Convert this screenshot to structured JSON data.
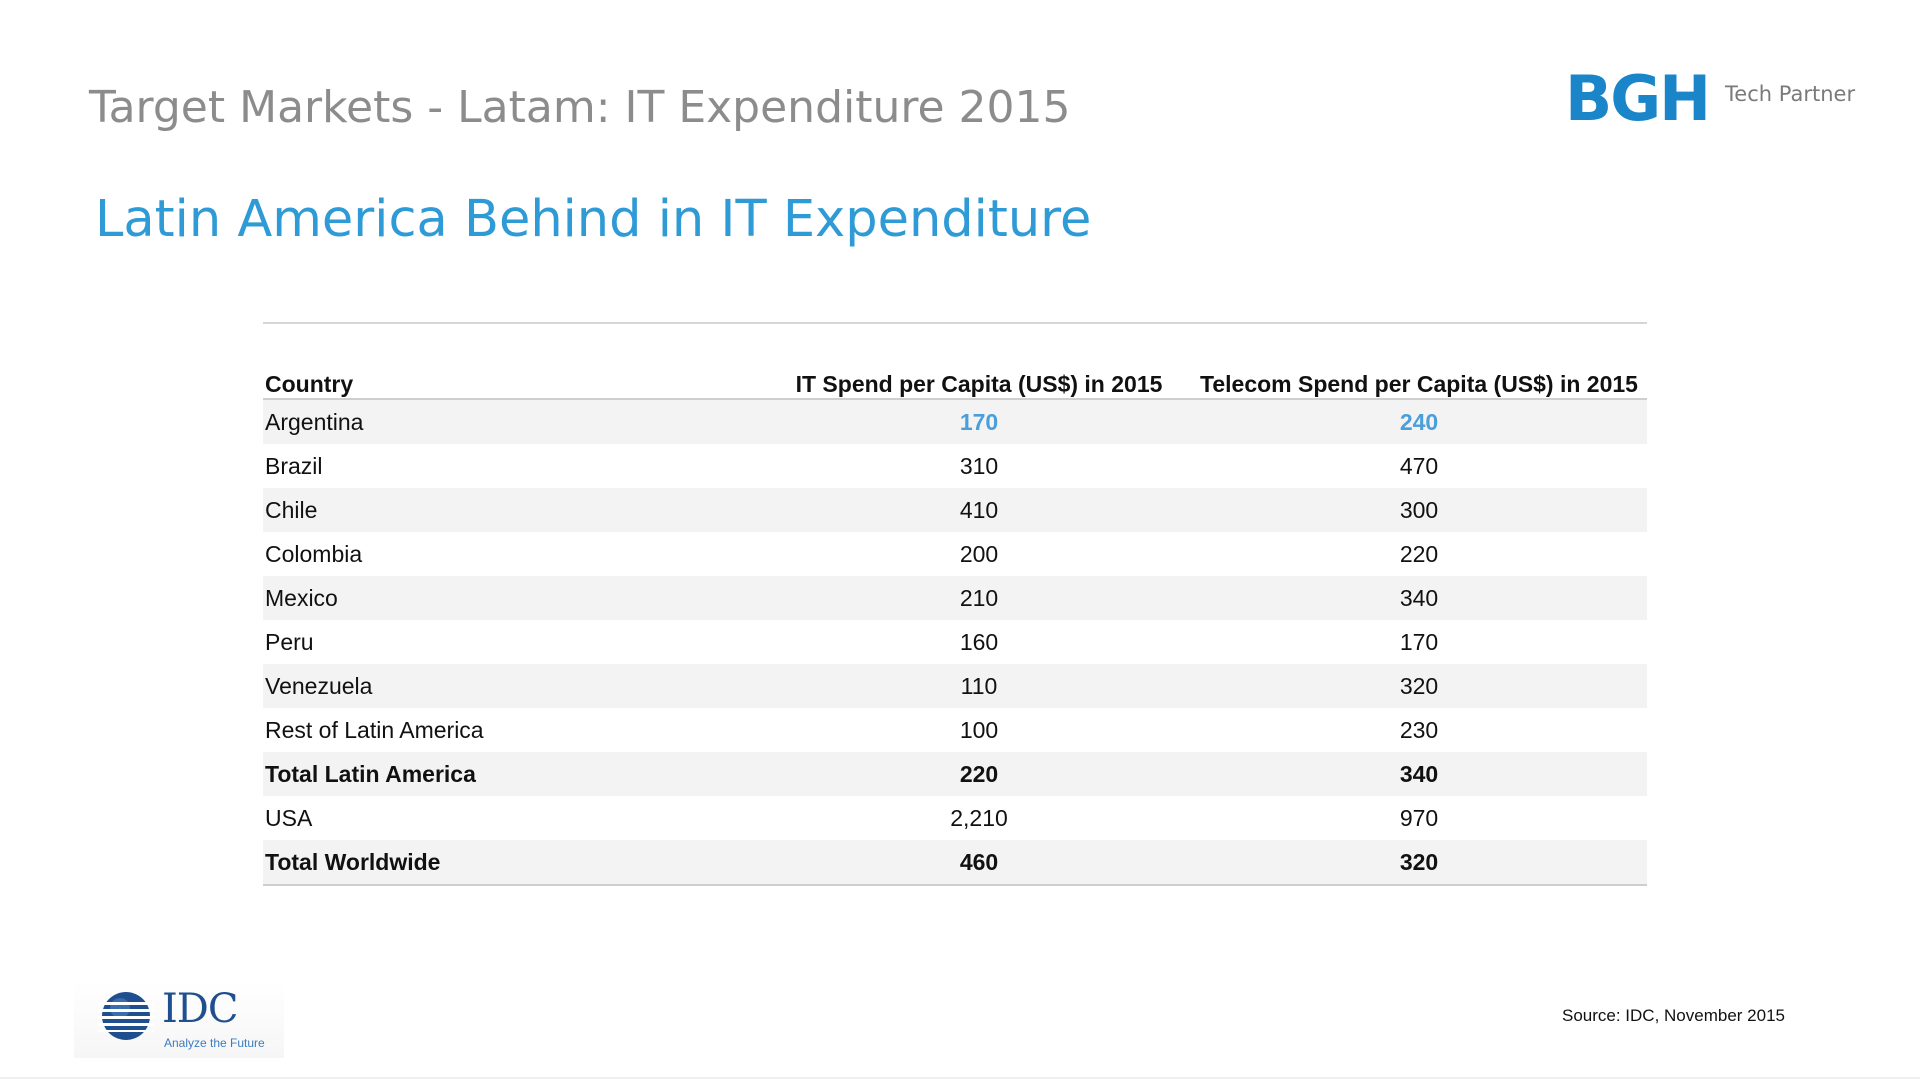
{
  "slide": {
    "title": "Target Markets - Latam: IT Expenditure 2015",
    "headline": "Latin America Behind in IT Expenditure",
    "accent_color": "#2e9ad6",
    "title_color": "#8c8c8c"
  },
  "brand": {
    "mark": "BGH",
    "tagline": "Tech Partner",
    "color": "#1a85c8"
  },
  "table": {
    "headers": {
      "country": "Country",
      "it": "IT Spend per Capita (US$) in 2015",
      "telecom": "Telecom Spend per Capita (US$) in 2015"
    },
    "highlight_color": "#4a9fdb",
    "rows": [
      {
        "country": "Argentina",
        "it": "170",
        "telecom": "240"
      },
      {
        "country": "Brazil",
        "it": "310",
        "telecom": "470"
      },
      {
        "country": "Chile",
        "it": "410",
        "telecom": "300"
      },
      {
        "country": "Colombia",
        "it": "200",
        "telecom": "220"
      },
      {
        "country": "Mexico",
        "it": "210",
        "telecom": "340"
      },
      {
        "country": "Peru",
        "it": "160",
        "telecom": "170"
      },
      {
        "country": "Venezuela",
        "it": "110",
        "telecom": "320"
      },
      {
        "country": "Rest of Latin America",
        "it": "100",
        "telecom": "230"
      },
      {
        "country": "Total Latin America",
        "it": "220",
        "telecom": "340"
      },
      {
        "country": "USA",
        "it": "2,210",
        "telecom": "970"
      },
      {
        "country": "Total Worldwide",
        "it": "460",
        "telecom": "320"
      }
    ]
  },
  "footer": {
    "logo_name": "IDC",
    "logo_tagline": "Analyze the Future",
    "logo_icon": "globe-icon",
    "source": "Source: IDC, November 2015"
  }
}
